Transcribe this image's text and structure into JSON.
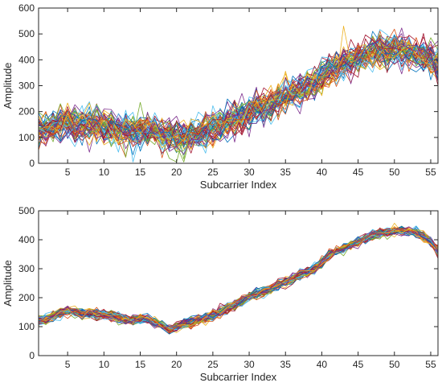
{
  "chart_data": [
    {
      "type": "line",
      "xlabel": "Subcarrier Index",
      "ylabel": "Amplitude",
      "xlim": [
        1,
        56
      ],
      "ylim": [
        0,
        600
      ],
      "xticks": [
        5,
        10,
        15,
        20,
        25,
        30,
        35,
        40,
        45,
        50,
        55
      ],
      "yticks": [
        0,
        100,
        200,
        300,
        400,
        500,
        600
      ],
      "grid": false,
      "legend": "none",
      "note_series": "many overlapping noisy trials around the mean curve",
      "x": [
        1,
        2,
        3,
        4,
        5,
        6,
        7,
        8,
        9,
        10,
        11,
        12,
        13,
        14,
        15,
        16,
        17,
        18,
        19,
        20,
        21,
        22,
        23,
        24,
        25,
        26,
        27,
        28,
        29,
        30,
        31,
        32,
        33,
        34,
        35,
        36,
        37,
        38,
        39,
        40,
        41,
        42,
        43,
        44,
        45,
        46,
        47,
        48,
        49,
        50,
        51,
        52,
        53,
        54,
        55,
        56
      ],
      "mean": [
        120,
        130,
        140,
        150,
        155,
        150,
        145,
        150,
        145,
        140,
        140,
        135,
        130,
        125,
        125,
        130,
        120,
        110,
        100,
        95,
        105,
        110,
        115,
        125,
        135,
        145,
        155,
        165,
        180,
        195,
        210,
        220,
        230,
        245,
        255,
        270,
        285,
        295,
        310,
        335,
        360,
        375,
        385,
        395,
        410,
        420,
        430,
        435,
        440,
        440,
        440,
        435,
        430,
        420,
        400,
        380
      ],
      "noise_amplitude": 45,
      "num_series": 60,
      "colors": [
        "#0072BD",
        "#D95319",
        "#EDB120",
        "#7E2F8E",
        "#77AC30",
        "#4DBEEE",
        "#A2142F"
      ]
    },
    {
      "type": "line",
      "xlabel": "Subcarrier Index",
      "ylabel": "Amplitude",
      "xlim": [
        1,
        56
      ],
      "ylim": [
        0,
        500
      ],
      "xticks": [
        5,
        10,
        15,
        20,
        25,
        30,
        35,
        40,
        45,
        50,
        55
      ],
      "yticks": [
        0,
        100,
        200,
        300,
        400,
        500
      ],
      "grid": false,
      "legend": "none",
      "note_series": "many overlapping smoothed trials around the mean curve",
      "x": [
        1,
        2,
        3,
        4,
        5,
        6,
        7,
        8,
        9,
        10,
        11,
        12,
        13,
        14,
        15,
        16,
        17,
        18,
        19,
        20,
        21,
        22,
        23,
        24,
        25,
        26,
        27,
        28,
        29,
        30,
        31,
        32,
        33,
        34,
        35,
        36,
        37,
        38,
        39,
        40,
        41,
        42,
        43,
        44,
        45,
        46,
        47,
        48,
        49,
        50,
        51,
        52,
        53,
        54,
        55,
        56
      ],
      "mean": [
        120,
        125,
        135,
        145,
        155,
        150,
        145,
        148,
        142,
        140,
        138,
        130,
        125,
        120,
        130,
        125,
        115,
        105,
        90,
        100,
        110,
        115,
        125,
        130,
        135,
        150,
        165,
        175,
        190,
        205,
        215,
        220,
        230,
        245,
        255,
        265,
        280,
        290,
        300,
        320,
        345,
        360,
        370,
        380,
        395,
        405,
        415,
        420,
        425,
        430,
        432,
        430,
        425,
        410,
        395,
        360
      ],
      "noise_amplitude": 12,
      "num_series": 60,
      "colors": [
        "#0072BD",
        "#D95319",
        "#EDB120",
        "#7E2F8E",
        "#77AC30",
        "#4DBEEE",
        "#A2142F"
      ]
    }
  ]
}
